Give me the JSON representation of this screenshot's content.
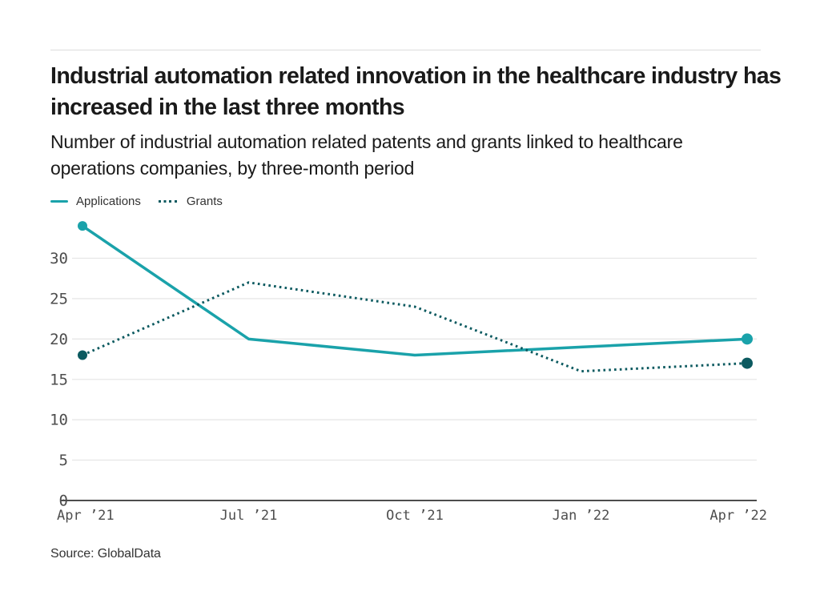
{
  "header": {
    "title": "Industrial automation related innovation in the healthcare industry has increased in the last three months",
    "subtitle": "Number of industrial automation related patents and grants linked to healthcare operations companies, by three-month period"
  },
  "chart_data": {
    "type": "line",
    "categories": [
      "Apr ’21",
      "Jul ’21",
      "Oct ’21",
      "Jan ’22",
      "Apr ’22"
    ],
    "series": [
      {
        "name": "Applications",
        "values": [
          34,
          20,
          18,
          19,
          20
        ],
        "color": "#1AA2AA",
        "line_style": "solid"
      },
      {
        "name": "Grants",
        "values": [
          18,
          27,
          24,
          16,
          17
        ],
        "color": "#0C5A60",
        "line_style": "dotted"
      }
    ],
    "yticks": [
      0,
      5,
      10,
      15,
      20,
      25,
      30
    ],
    "ylim": [
      0,
      34
    ],
    "xlabel": "",
    "ylabel": "",
    "grid": "horizontal",
    "legend_position": "top-left",
    "end_point_markers": true
  },
  "colors": {
    "applications_line": "#1AA2AA",
    "grants_line": "#0C5A60",
    "gridline": "#e7e7e7",
    "axis_line": "#4d4d4d",
    "title_text": "#1a1a1a",
    "label_text": "#4d4d4d"
  },
  "source": {
    "label": "Source: GlobalData"
  }
}
